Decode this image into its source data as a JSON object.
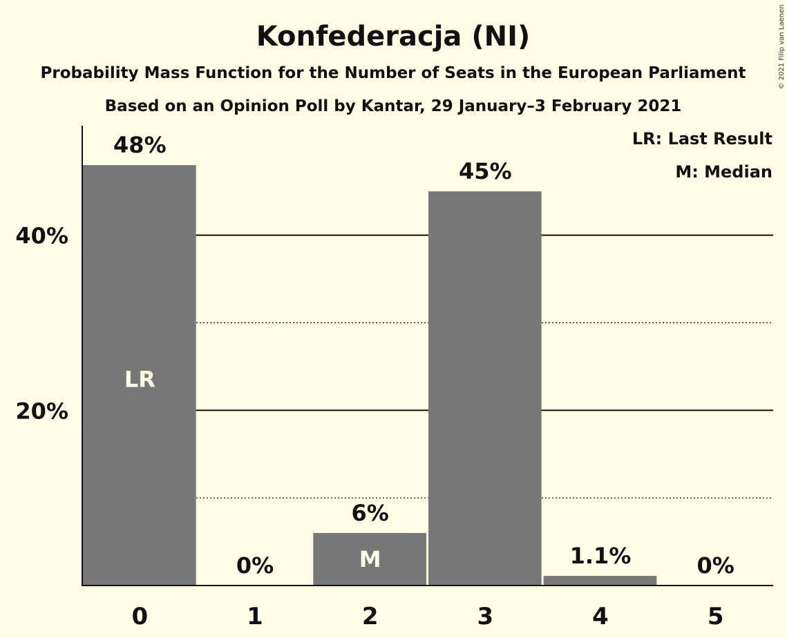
{
  "chart_data": {
    "type": "bar",
    "title": "Konfederacja (NI)",
    "subtitle": "Probability Mass Function for the Number of Seats in the European Parliament",
    "source": "Based on an Opinion Poll by Kantar, 29 January–3 February 2021",
    "categories": [
      "0",
      "1",
      "2",
      "3",
      "4",
      "5"
    ],
    "values": [
      48,
      0,
      6,
      45,
      1.1,
      0
    ],
    "value_labels": [
      "48%",
      "0%",
      "6%",
      "45%",
      "1.1%",
      "0%"
    ],
    "bar_annotations": [
      "LR",
      "",
      "M",
      "",
      "",
      ""
    ],
    "ylim": [
      0,
      52.5
    ],
    "yticks": [
      {
        "value": 20,
        "label": "20%"
      },
      {
        "value": 40,
        "label": "40%"
      }
    ],
    "minor_gridlines": [
      10,
      30
    ],
    "legend": [
      "LR: Last Result",
      "M: Median"
    ],
    "legend_position": "top-right",
    "copyright": "© 2021 Filip van Laenen",
    "colors": {
      "bar": "#777777",
      "background": "#fffde6",
      "text": "#111111"
    }
  }
}
